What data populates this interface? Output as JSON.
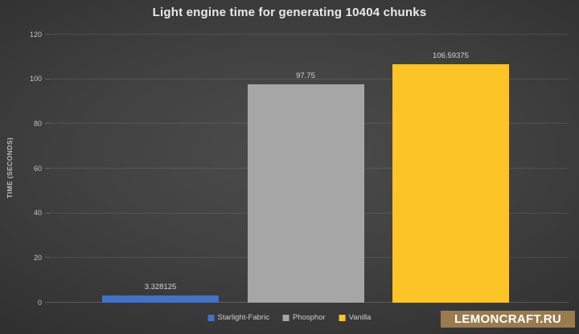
{
  "title": "Light engine time for generating 10404 chunks",
  "chart_data": {
    "type": "bar",
    "categories": [
      "Starlight-Fabric",
      "Phosphor",
      "Vanilla"
    ],
    "values": [
      3.328125,
      97.75,
      106.59375
    ],
    "value_labels": [
      "3.328125",
      "97.75",
      "106.59375"
    ],
    "bar_colors": [
      "#4472C4",
      "#A6A6A6",
      "#FDC428"
    ],
    "title": "Light engine time for generating 10404 chunks",
    "xlabel": "",
    "ylabel": "TIME (SECONDS)",
    "ylim": [
      0,
      120
    ],
    "yticks": [
      0,
      20,
      40,
      60,
      80,
      100,
      120
    ],
    "grid": true,
    "legend_position": "bottom"
  },
  "legend": {
    "items": [
      {
        "label": "Starlight-Fabric",
        "color": "#4472C4"
      },
      {
        "label": "Phosphor",
        "color": "#A6A6A6"
      },
      {
        "label": "Vanilla",
        "color": "#FDC428"
      }
    ]
  },
  "watermark": {
    "text": "LEMONCRAFT.RU",
    "bg_color": "#9A7B4F"
  }
}
